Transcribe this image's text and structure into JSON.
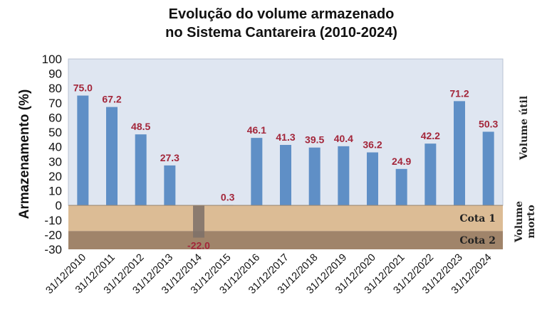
{
  "chart_data": {
    "type": "bar",
    "title": [
      "Evolução do volume armazenado",
      "no Sistema Cantareira (2010-2024)"
    ],
    "xlabel": "",
    "ylabel": "Armazenamento (%)",
    "ylim": [
      -30,
      100
    ],
    "yticks": [
      100,
      90,
      80,
      70,
      60,
      50,
      40,
      30,
      20,
      10,
      0,
      -10,
      -20,
      -30
    ],
    "categories": [
      "31/12/2010",
      "31/12/2011",
      "31/12/2012",
      "31/12/2013",
      "31/12/2014",
      "31/12/2015",
      "31/12/2016",
      "31/12/2017",
      "31/12/2018",
      "31/12/2019",
      "31/12/2020",
      "31/12/2021",
      "31/12/2022",
      "31/12/2023",
      "31/12/2024"
    ],
    "values": [
      75.0,
      67.2,
      48.5,
      27.3,
      -22.0,
      0.3,
      46.1,
      41.3,
      39.5,
      40.4,
      36.2,
      24.9,
      42.2,
      71.2,
      50.3
    ],
    "data_labels": [
      "75.0",
      "67.2",
      "48.5",
      "27.3",
      "-22.0",
      "0.3",
      "46.1",
      "41.3",
      "39.5",
      "40.4",
      "36.2",
      "24.9",
      "42.2",
      "71.2",
      "50.3"
    ],
    "bands": [
      {
        "label": "Cota 1",
        "from": 0,
        "to": -17.5,
        "color": "#dcbc95"
      },
      {
        "label": "Cota 2",
        "from": -17.5,
        "to": -30,
        "color": "#a0846a"
      }
    ],
    "zone_labels": {
      "useful": "Volume útil",
      "dead": [
        "Volume",
        "morto"
      ]
    },
    "colors": {
      "bar": "#5f8fc6",
      "negative_bar": "#7d7068",
      "plot_bg": "#dfe6f1",
      "data_label": "#a3263a"
    },
    "grid": false,
    "legend": "none"
  }
}
